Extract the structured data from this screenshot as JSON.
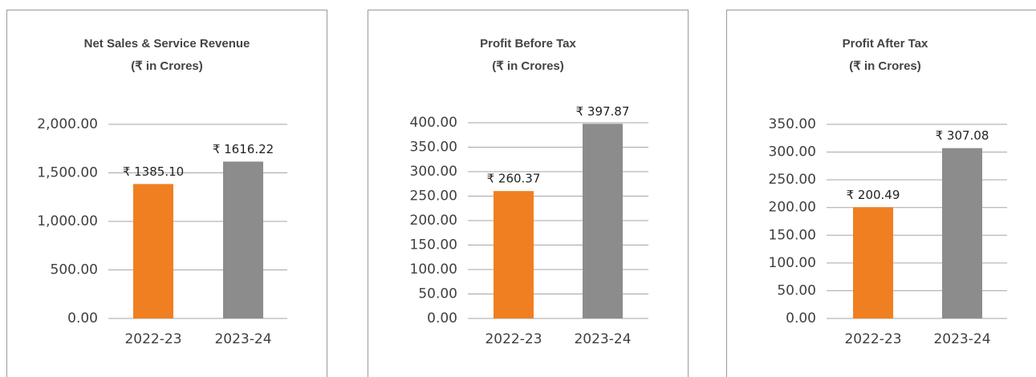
{
  "chart_data": [
    {
      "type": "bar",
      "title": "Net Sales & Service Revenue",
      "subtitle": "(₹ in Crores)",
      "categories": [
        "2022-23",
        "2023-24"
      ],
      "values": [
        1385.1,
        1616.22
      ],
      "value_labels": [
        "₹ 1385.10",
        "₹ 1616.22"
      ],
      "colors": [
        "#f07f21",
        "#8c8c8c"
      ],
      "ylim": [
        0,
        2000
      ],
      "yticks": [
        {
          "value": 0,
          "label": "0.00"
        },
        {
          "value": 500,
          "label": "500.00"
        },
        {
          "value": 1000,
          "label": "1,000.00"
        },
        {
          "value": 1500,
          "label": "1,500.00"
        },
        {
          "value": 2000,
          "label": "2,000.00"
        }
      ],
      "grid": true
    },
    {
      "type": "bar",
      "title": "Profit Before Tax",
      "subtitle": "(₹ in Crores)",
      "categories": [
        "2022-23",
        "2023-24"
      ],
      "values": [
        260.37,
        397.87
      ],
      "value_labels": [
        "₹ 260.37",
        "₹ 397.87"
      ],
      "colors": [
        "#f07f21",
        "#8c8c8c"
      ],
      "ylim": [
        0,
        400
      ],
      "yticks": [
        {
          "value": 0,
          "label": "0.00"
        },
        {
          "value": 50,
          "label": "50.00"
        },
        {
          "value": 100,
          "label": "100.00"
        },
        {
          "value": 150,
          "label": "150.00"
        },
        {
          "value": 200,
          "label": "200.00"
        },
        {
          "value": 250,
          "label": "250.00"
        },
        {
          "value": 300,
          "label": "300.00"
        },
        {
          "value": 350,
          "label": "350.00"
        },
        {
          "value": 400,
          "label": "400.00"
        }
      ],
      "grid": true
    },
    {
      "type": "bar",
      "title": "Profit After Tax",
      "subtitle": "(₹ in Crores)",
      "categories": [
        "2022-23",
        "2023-24"
      ],
      "values": [
        200.49,
        307.08
      ],
      "value_labels": [
        "₹ 200.49",
        "₹ 307.08"
      ],
      "colors": [
        "#f07f21",
        "#8c8c8c"
      ],
      "ylim": [
        0,
        350
      ],
      "yticks": [
        {
          "value": 0,
          "label": "0.00"
        },
        {
          "value": 50,
          "label": "50.00"
        },
        {
          "value": 100,
          "label": "100.00"
        },
        {
          "value": 150,
          "label": "150.00"
        },
        {
          "value": 200,
          "label": "200.00"
        },
        {
          "value": 250,
          "label": "250.00"
        },
        {
          "value": 300,
          "label": "300.00"
        },
        {
          "value": 350,
          "label": "350.00"
        }
      ],
      "grid": true
    }
  ]
}
